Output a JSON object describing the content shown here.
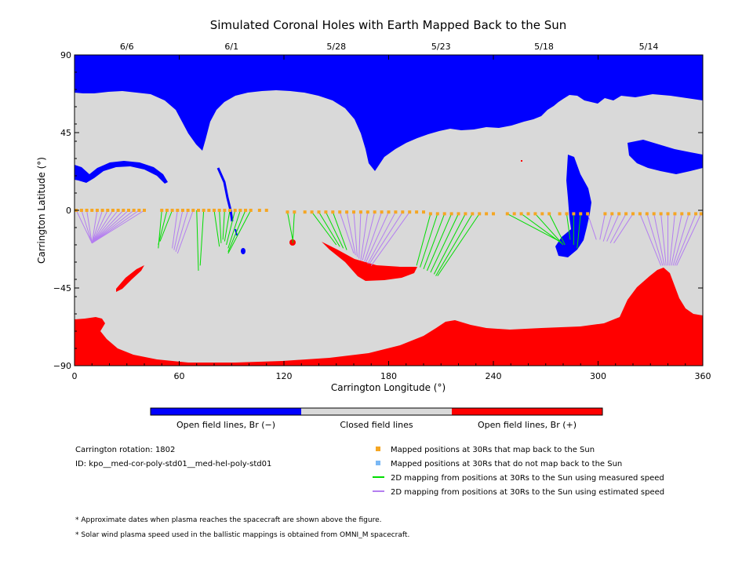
{
  "title": "Simulated Coronal Holes with Earth Mapped Back to the Sun",
  "chart_data": {
    "type": "map",
    "title": "Simulated Coronal Holes with Earth Mapped Back to the Sun",
    "xlabel": "Carrington Longitude (°)",
    "ylabel": "Carrington Latitude (°)",
    "xlim": [
      0,
      360
    ],
    "ylim": [
      -90,
      90
    ],
    "x_ticks": [
      0,
      60,
      120,
      180,
      240,
      300,
      360
    ],
    "x_tick_labels": [
      "0",
      "60",
      "120",
      "180",
      "240",
      "300",
      "360"
    ],
    "y_ticks": [
      90,
      45,
      0,
      -45,
      -90
    ],
    "y_tick_labels": [
      "90",
      "45",
      "0",
      "−45",
      "−90"
    ],
    "top_axis_dates": [
      {
        "label": "6/6",
        "longitude": 30
      },
      {
        "label": "6/1",
        "longitude": 90
      },
      {
        "label": "5/28",
        "longitude": 150
      },
      {
        "label": "5/23",
        "longitude": 210
      },
      {
        "label": "5/18",
        "longitude": 269
      },
      {
        "label": "5/14",
        "longitude": 329
      }
    ],
    "colors": {
      "open_negative": "#0000ff",
      "closed": "#d9d9d9",
      "open_positive": "#ff0000",
      "mapped_point": "#f5a623",
      "measured_line": "#00dd00",
      "estimated_line": "#b47ef0"
    },
    "colorbar": [
      {
        "label": "Open field lines, Br (−)",
        "color": "#0000ff"
      },
      {
        "label": "Closed field lines",
        "color": "#d9d9d9"
      },
      {
        "label": "Open field lines, Br (+)",
        "color": "#ff0000"
      }
    ],
    "mapped_positions": {
      "longitudes": [
        1,
        4,
        7,
        10,
        13,
        16,
        19,
        22,
        25,
        28,
        31,
        34,
        37,
        40,
        50,
        53,
        56,
        59,
        62,
        65,
        68,
        71,
        74,
        77,
        80,
        83,
        86,
        89,
        92,
        95,
        98,
        101,
        106,
        110,
        122,
        126,
        132,
        136,
        140,
        144,
        148,
        152,
        156,
        160,
        164,
        168,
        172,
        176,
        180,
        184,
        188,
        192,
        196,
        200,
        204,
        208,
        212,
        216,
        220,
        224,
        228,
        232,
        236,
        240,
        248,
        252,
        256,
        260,
        264,
        268,
        272,
        278,
        282,
        286,
        290,
        294,
        304,
        308,
        312,
        316,
        320,
        324,
        328,
        332,
        336,
        340,
        344,
        348,
        352,
        356,
        359
      ],
      "latitudes": [
        0,
        0,
        0,
        0,
        0,
        0,
        0,
        0,
        0,
        0,
        0,
        0,
        0,
        0,
        0,
        0,
        0,
        0,
        0,
        0,
        0,
        0,
        0,
        0,
        0,
        0,
        0,
        0,
        0,
        0,
        0,
        0,
        0,
        0,
        -1,
        -1,
        -1,
        -1,
        -1,
        -1,
        -1,
        -1,
        -1,
        -1,
        -1,
        -1,
        -1,
        -1,
        -1,
        -1,
        -1,
        -1,
        -1,
        -1,
        -2,
        -2,
        -2,
        -2,
        -2,
        -2,
        -2,
        -2,
        -2,
        -2,
        -2,
        -2,
        -2,
        -2,
        -2,
        -2,
        -2,
        -2,
        -2,
        -2,
        -2,
        -2,
        -2,
        -2,
        -2,
        -2,
        -2,
        -2,
        -2,
        -2,
        -2,
        -2,
        -2,
        -2,
        -2,
        -2,
        -2
      ]
    },
    "measured_speed_mappings": [
      [
        50,
        0,
        48,
        -22
      ],
      [
        53,
        0,
        48,
        -20
      ],
      [
        56,
        0,
        49,
        -18
      ],
      [
        70,
        0,
        71,
        -35
      ],
      [
        74,
        0,
        72,
        -32
      ],
      [
        80,
        0,
        83,
        -21
      ],
      [
        83,
        0,
        84,
        -19
      ],
      [
        86,
        0,
        85,
        -17
      ],
      [
        89,
        0,
        86,
        -18
      ],
      [
        92,
        0,
        87,
        -20
      ],
      [
        95,
        0,
        88,
        -22
      ],
      [
        98,
        0,
        88,
        -24
      ],
      [
        101,
        0,
        88,
        -25
      ],
      [
        122,
        -1,
        125,
        -17
      ],
      [
        126,
        -1,
        125,
        -19
      ],
      [
        136,
        -1,
        150,
        -20
      ],
      [
        140,
        -1,
        152,
        -21
      ],
      [
        144,
        -1,
        154,
        -22
      ],
      [
        148,
        -1,
        156,
        -23
      ],
      [
        204,
        -2,
        196,
        -32
      ],
      [
        208,
        -2,
        198,
        -33
      ],
      [
        212,
        -2,
        200,
        -34
      ],
      [
        216,
        -2,
        202,
        -35
      ],
      [
        220,
        -2,
        204,
        -36
      ],
      [
        224,
        -2,
        206,
        -37
      ],
      [
        228,
        -2,
        207,
        -38
      ],
      [
        232,
        -2,
        208,
        -38
      ],
      [
        248,
        -2,
        278,
        -18
      ],
      [
        256,
        -2,
        279,
        -19
      ],
      [
        264,
        -2,
        280,
        -20
      ],
      [
        272,
        -2,
        281,
        -20
      ],
      [
        282,
        -2,
        284,
        -17
      ],
      [
        286,
        -2,
        286,
        -20
      ],
      [
        290,
        -2,
        288,
        -22
      ]
    ],
    "estimated_speed_mappings": [
      [
        1,
        0,
        10,
        -19
      ],
      [
        4,
        0,
        10,
        -19
      ],
      [
        7,
        0,
        10,
        -19
      ],
      [
        13,
        0,
        10,
        -19
      ],
      [
        16,
        0,
        10,
        -19
      ],
      [
        19,
        0,
        10,
        -19
      ],
      [
        22,
        0,
        10,
        -19
      ],
      [
        25,
        0,
        10,
        -19
      ],
      [
        28,
        0,
        10,
        -19
      ],
      [
        31,
        0,
        10,
        -19
      ],
      [
        34,
        0,
        10,
        -19
      ],
      [
        37,
        0,
        10,
        -19
      ],
      [
        40,
        0,
        10,
        -19
      ],
      [
        59,
        0,
        56,
        -22
      ],
      [
        62,
        0,
        57,
        -23
      ],
      [
        65,
        0,
        58,
        -24
      ],
      [
        68,
        0,
        59,
        -25
      ],
      [
        152,
        -1,
        160,
        -25
      ],
      [
        156,
        -1,
        161,
        -26
      ],
      [
        160,
        -1,
        162,
        -27
      ],
      [
        164,
        -1,
        163,
        -28
      ],
      [
        168,
        -1,
        164,
        -29
      ],
      [
        172,
        -1,
        165,
        -29
      ],
      [
        176,
        -1,
        166,
        -30
      ],
      [
        180,
        -1,
        167,
        -30
      ],
      [
        184,
        -1,
        168,
        -31
      ],
      [
        188,
        -1,
        169,
        -31
      ],
      [
        192,
        -1,
        170,
        -32
      ],
      [
        294,
        -2,
        299,
        -17
      ],
      [
        304,
        -2,
        301,
        -17
      ],
      [
        308,
        -2,
        303,
        -18
      ],
      [
        312,
        -2,
        305,
        -18
      ],
      [
        316,
        -2,
        307,
        -19
      ],
      [
        320,
        -2,
        309,
        -19
      ],
      [
        324,
        -2,
        336,
        -32
      ],
      [
        328,
        -2,
        337,
        -32
      ],
      [
        332,
        -2,
        338,
        -32
      ],
      [
        336,
        -2,
        339,
        -32
      ],
      [
        340,
        -2,
        340,
        -32
      ],
      [
        344,
        -2,
        341,
        -32
      ],
      [
        348,
        -2,
        342,
        -32
      ],
      [
        352,
        -2,
        343,
        -32
      ],
      [
        356,
        -2,
        344,
        -32
      ],
      [
        359,
        -2,
        345,
        -32
      ]
    ],
    "legend": [
      {
        "label": "Mapped positions at 30Rs that map back to the Sun",
        "color": "#f5a623",
        "symbol": "square"
      },
      {
        "label": "Mapped positions at 30Rs that do not map back to the Sun",
        "color": "#7ab8f5",
        "symbol": "square"
      },
      {
        "label": "2D mapping from positions at 30Rs to the Sun using measured speed",
        "color": "#00dd00",
        "symbol": "line"
      },
      {
        "label": "2D mapping from positions at 30Rs to the Sun using estimated speed",
        "color": "#b47ef0",
        "symbol": "line"
      }
    ]
  },
  "info": {
    "rotation": "Carrington rotation: 1802",
    "id": "ID: kpo__med-cor-poly-std01__med-hel-poly-std01"
  },
  "notes": [
    "* Approximate dates when plasma reaches the spacecraft are shown above the figure.",
    "* Solar wind plasma speed used in the ballistic mappings is obtained from OMNI_M spacecraft."
  ]
}
